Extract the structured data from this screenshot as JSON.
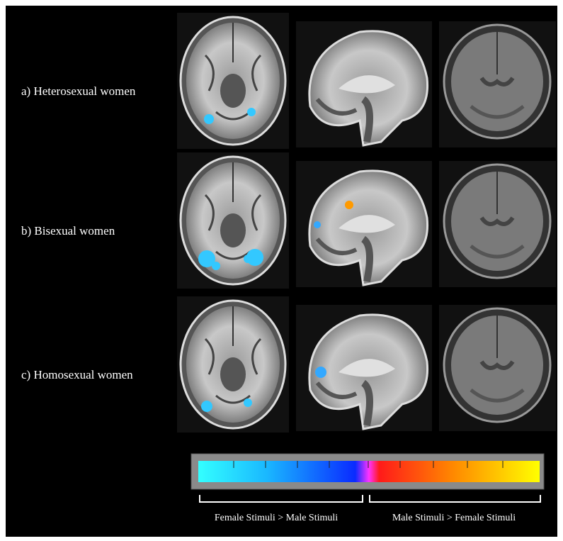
{
  "rows": [
    {
      "label": "a) Heterosexual women"
    },
    {
      "label": "b) Bisexual women"
    },
    {
      "label": "c) Homosexual women"
    }
  ],
  "colorbar": {
    "left_label": "Female Stimuli > Male Stimuli",
    "right_label": "Male Stimuli > Female Stimuli"
  }
}
